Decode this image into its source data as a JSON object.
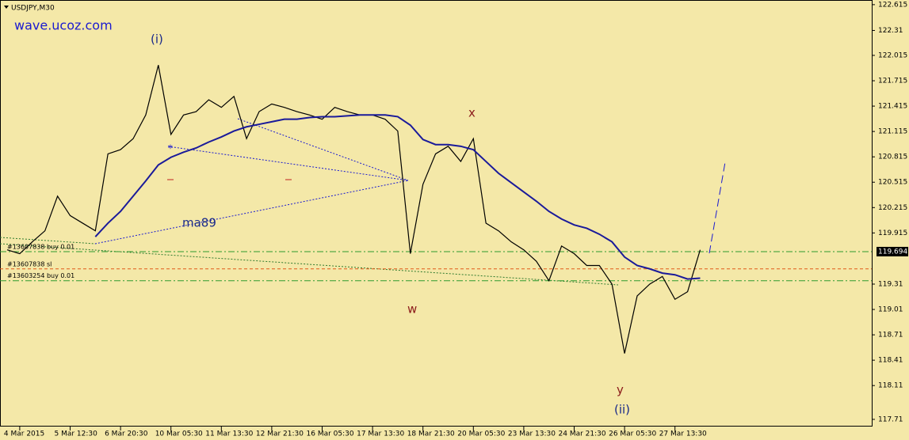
{
  "chart_data": {
    "type": "line",
    "title": "USDJPY,M30",
    "categories": [
      null,
      "4 Mar 2015",
      null,
      null,
      null,
      "5 Mar 12:30",
      null,
      null,
      null,
      "6 Mar 20:30",
      null,
      null,
      null,
      "10 Mar 05:30",
      null,
      null,
      null,
      "11 Mar 13:30",
      null,
      null,
      null,
      "12 Mar 21:30",
      null,
      null,
      null,
      "16 Mar 05:30",
      null,
      null,
      null,
      "17 Mar 13:30",
      null,
      null,
      null,
      "18 Mar 21:30",
      null,
      null,
      null,
      "20 Mar 05:30",
      null,
      null,
      null,
      "23 Mar 13:30",
      null,
      null,
      null,
      "24 Mar 21:30",
      null,
      null,
      null,
      "26 Mar 05:30",
      null,
      null,
      null,
      "27 Mar 13:30",
      null,
      null
    ],
    "series": [
      {
        "color": "#000000",
        "values": [
          119.715,
          119.67,
          119.81,
          119.94,
          120.35,
          120.12,
          120.03,
          119.94,
          120.85,
          120.9,
          121.03,
          121.31,
          121.9,
          121.08,
          121.31,
          121.35,
          121.49,
          121.4,
          121.53,
          121.03,
          121.35,
          121.44,
          121.4,
          121.35,
          121.31,
          121.26,
          121.4,
          121.35,
          121.31,
          121.31,
          121.26,
          121.12,
          119.67,
          120.49,
          120.85,
          120.94,
          120.76,
          121.03,
          120.03,
          119.94,
          119.81,
          119.715,
          119.58,
          119.35,
          119.76,
          119.67,
          119.53,
          119.53,
          119.31,
          118.49,
          119.17,
          119.31,
          119.4,
          119.13,
          119.22,
          119.715
        ]
      },
      {
        "color": "#1a1a9a",
        "values": [
          null,
          null,
          null,
          null,
          null,
          null,
          null,
          119.87,
          120.03,
          120.17,
          120.35,
          120.53,
          120.72,
          120.81,
          120.87,
          120.92,
          120.99,
          121.05,
          121.12,
          121.17,
          121.2,
          121.23,
          121.26,
          121.26,
          121.28,
          121.29,
          121.29,
          121.3,
          121.31,
          121.31,
          121.31,
          121.29,
          121.19,
          121.02,
          120.96,
          120.96,
          120.94,
          120.9,
          120.76,
          120.62,
          120.51,
          120.4,
          120.29,
          120.17,
          120.08,
          120.01,
          119.97,
          119.9,
          119.81,
          119.63,
          119.53,
          119.49,
          119.44,
          119.42,
          119.37,
          119.38
        ]
      }
    ],
    "ylim": [
      117.7,
      122.67
    ],
    "yticks": [
      122.615,
      122.31,
      122.015,
      121.715,
      121.415,
      121.115,
      120.815,
      120.515,
      120.215,
      119.915,
      119.31,
      119.01,
      118.71,
      118.41,
      118.11,
      117.71
    ],
    "levels": [
      {
        "value": 119.694,
        "color": "#2e9a2e",
        "label": "#13607838 buy 0.01"
      },
      {
        "value": 119.49,
        "color": "#e05a1a",
        "label": "#13607838 sl"
      },
      {
        "value": 119.35,
        "color": "#2e9a2e",
        "label": "#13603254 buy 0.01"
      }
    ],
    "annotations": [
      "wave.ucoz.com",
      "(i)",
      "x",
      "w",
      "y",
      "(ii)",
      "ma89"
    ]
  }
}
